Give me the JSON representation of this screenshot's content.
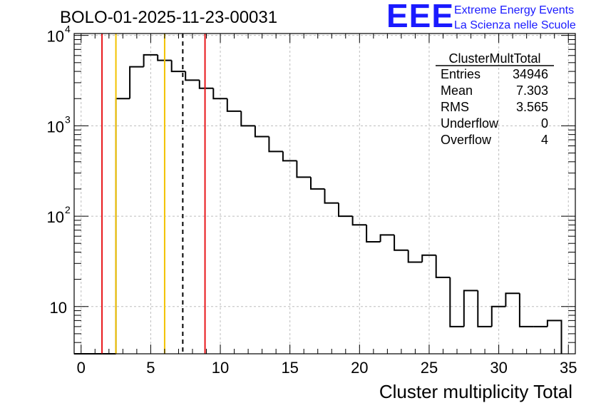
{
  "chart_data": {
    "type": "bar",
    "title": "BOLO-01-2025-11-23-00031",
    "xlabel": "Cluster multiplicity Total",
    "ylabel": "",
    "xlim": [
      -0.5,
      35.5
    ],
    "ylim": [
      3,
      10500
    ],
    "yscale": "log",
    "bin_width": 1,
    "x_ticks": [
      0,
      5,
      10,
      15,
      20,
      25,
      30,
      35
    ],
    "x_tick_labels": [
      "0",
      "5",
      "10",
      "15",
      "20",
      "25",
      "30",
      "35"
    ],
    "y_ticks": [
      {
        "value": 10,
        "base": "10",
        "exp": ""
      },
      {
        "value": 100,
        "base": "10",
        "exp": "2"
      },
      {
        "value": 1000,
        "base": "10",
        "exp": "3"
      },
      {
        "value": 10000,
        "base": "10",
        "exp": "4"
      }
    ],
    "bins": [
      {
        "x": 0,
        "count": 0
      },
      {
        "x": 1,
        "count": 0
      },
      {
        "x": 2,
        "count": 0
      },
      {
        "x": 3,
        "count": 2000
      },
      {
        "x": 4,
        "count": 4500
      },
      {
        "x": 5,
        "count": 6100
      },
      {
        "x": 6,
        "count": 5300
      },
      {
        "x": 7,
        "count": 4000
      },
      {
        "x": 8,
        "count": 3200
      },
      {
        "x": 9,
        "count": 2600
      },
      {
        "x": 10,
        "count": 2000
      },
      {
        "x": 11,
        "count": 1450
      },
      {
        "x": 12,
        "count": 1000
      },
      {
        "x": 13,
        "count": 760
      },
      {
        "x": 14,
        "count": 520
      },
      {
        "x": 15,
        "count": 410
      },
      {
        "x": 16,
        "count": 270
      },
      {
        "x": 17,
        "count": 200
      },
      {
        "x": 18,
        "count": 140
      },
      {
        "x": 19,
        "count": 100
      },
      {
        "x": 20,
        "count": 80
      },
      {
        "x": 21,
        "count": 52
      },
      {
        "x": 22,
        "count": 62
      },
      {
        "x": 23,
        "count": 42
      },
      {
        "x": 24,
        "count": 31
      },
      {
        "x": 25,
        "count": 37
      },
      {
        "x": 26,
        "count": 21
      },
      {
        "x": 27,
        "count": 6
      },
      {
        "x": 28,
        "count": 15
      },
      {
        "x": 29,
        "count": 6
      },
      {
        "x": 30,
        "count": 10
      },
      {
        "x": 31,
        "count": 14
      },
      {
        "x": 32,
        "count": 6
      },
      {
        "x": 33,
        "count": 6
      },
      {
        "x": 34,
        "count": 7
      }
    ],
    "vertical_lines": [
      {
        "name": "red-line-low",
        "x": 1.5,
        "color": "#e8171b",
        "style": "solid"
      },
      {
        "name": "yellow-line-low",
        "x": 2.5,
        "color": "#f2c200",
        "style": "solid"
      },
      {
        "name": "yellow-line-high",
        "x": 6.0,
        "color": "#f2c200",
        "style": "solid"
      },
      {
        "name": "mean-line",
        "x": 7.303,
        "color": "#000000",
        "style": "dashed"
      },
      {
        "name": "red-line-high",
        "x": 8.9,
        "color": "#e8171b",
        "style": "solid"
      }
    ],
    "grid": true,
    "stats_box": {
      "title": "ClusterMultTotal",
      "rows": [
        {
          "label": "Entries",
          "value": "34946"
        },
        {
          "label": "Mean",
          "value": "7.303"
        },
        {
          "label": "RMS",
          "value": "3.565"
        },
        {
          "label": "Underflow",
          "value": "0"
        },
        {
          "label": "Overflow",
          "value": "4"
        }
      ]
    }
  },
  "logo": {
    "letters": "EEE",
    "line1": "Extreme Energy Events",
    "line2": "La Scienza nelle Scuole",
    "color": "#1a1aff"
  }
}
